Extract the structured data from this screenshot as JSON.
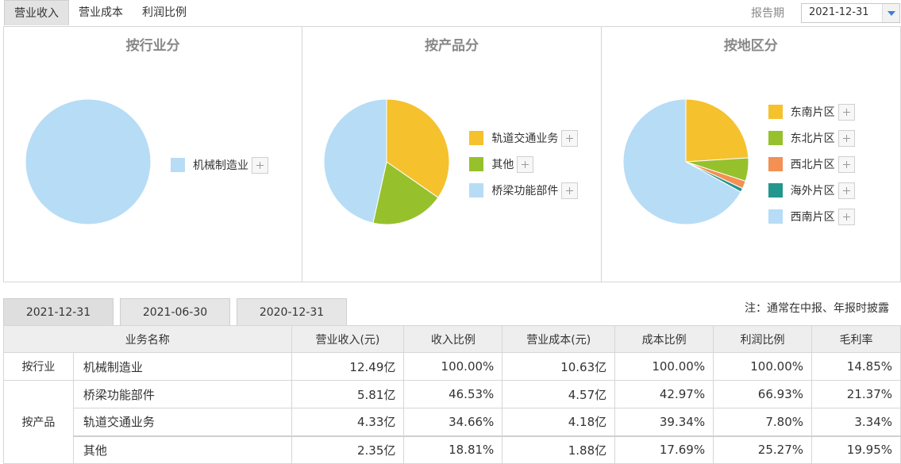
{
  "top_tabs": [
    "营业收入",
    "营业成本",
    "利润比例"
  ],
  "report_period": {
    "label": "报告期",
    "value": "2021-12-31"
  },
  "colors": {
    "blue": "#b7dcf5",
    "yellow": "#f5c12d",
    "green": "#96c12c",
    "orange": "#f39054",
    "teal": "#23968d"
  },
  "chart_data": [
    {
      "type": "pie",
      "title": "按行业分",
      "labels": [
        "机械制造业"
      ],
      "values": [
        100.0
      ],
      "colors": [
        "#b7dcf5"
      ],
      "legend_position": "right"
    },
    {
      "type": "pie",
      "title": "按产品分",
      "labels": [
        "轨道交通业务",
        "其他",
        "桥梁功能部件"
      ],
      "values": [
        34.66,
        18.81,
        46.53
      ],
      "colors": [
        "#f5c12d",
        "#96c12c",
        "#b7dcf5"
      ],
      "legend_position": "right"
    },
    {
      "type": "pie",
      "title": "按地区分",
      "labels": [
        "东南片区",
        "东北片区",
        "西北片区",
        "海外片区",
        "西南片区"
      ],
      "values": [
        24.0,
        6.0,
        2.0,
        1.0,
        67.0
      ],
      "colors": [
        "#f5c12d",
        "#96c12c",
        "#f39054",
        "#23968d",
        "#b7dcf5"
      ],
      "legend_position": "right"
    }
  ],
  "date_tabs": [
    "2021-12-31",
    "2021-06-30",
    "2020-12-31"
  ],
  "note": "注：通常在中报、年报时披露",
  "table": {
    "headers": [
      "业务名称",
      "营业收入(元)",
      "收入比例",
      "营业成本(元)",
      "成本比例",
      "利润比例",
      "毛利率"
    ],
    "groups": [
      {
        "name": "按行业",
        "rows": [
          [
            "机械制造业",
            "12.49亿",
            "100.00%",
            "10.63亿",
            "100.00%",
            "100.00%",
            "14.85%"
          ]
        ]
      },
      {
        "name": "按产品",
        "rows": [
          [
            "桥梁功能部件",
            "5.81亿",
            "46.53%",
            "4.57亿",
            "42.97%",
            "66.93%",
            "21.37%"
          ],
          [
            "轨道交通业务",
            "4.33亿",
            "34.66%",
            "4.18亿",
            "39.34%",
            "7.80%",
            "3.34%"
          ],
          [
            "其他",
            "2.35亿",
            "18.81%",
            "1.88亿",
            "17.69%",
            "25.27%",
            "19.95%"
          ]
        ]
      }
    ]
  }
}
